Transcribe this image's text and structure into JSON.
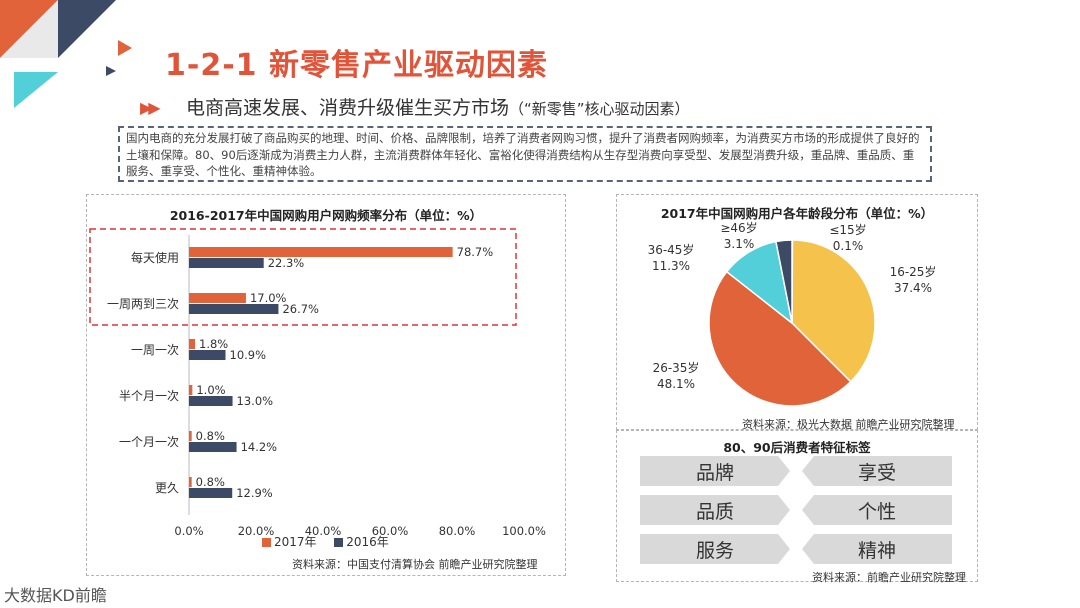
{
  "page": {
    "title": "1-2-1  新零售产业驱动因素",
    "subtitle_main": "电商高速发展、消费升级催生买方市场",
    "subtitle_note": "（“新零售”核心驱动因素）",
    "intro": "国内电商的充分发展打破了商品购买的地理、时间、价格、品牌限制，培养了消费者网购习惯，提升了消费者网购频率，为消费买方市场的形成提供了良好的土壤和保障。80、90后逐渐成为消费主力人群，主流消费群体年轻化、富裕化使得消费结构从生存型消费向享受型、发展型消费升级，重品牌、重品质、重服务、重享受、个性化、重精神体验。",
    "watermark": "大数据KD前瞻"
  },
  "colors": {
    "orange": "#e0633a",
    "navy": "#3d4a66",
    "yellow": "#f5c24c",
    "cyan": "#52cfd9",
    "dark": "#3d4a66"
  },
  "chart_data": [
    {
      "type": "bar",
      "orientation": "horizontal",
      "title": "2016-2017年中国网购用户网购频率分布（单位：%）",
      "categories": [
        "每天使用",
        "一周两到三次",
        "一周一次",
        "半个月一次",
        "一个月一次",
        "更久"
      ],
      "series": [
        {
          "name": "2017年",
          "values": [
            78.7,
            17.0,
            1.8,
            1.0,
            0.8,
            0.8
          ],
          "labels": [
            "78.7%",
            "17.0%",
            "1.8%",
            "1.0%",
            "0.8%",
            "0.8%"
          ]
        },
        {
          "name": "2016年",
          "values": [
            22.3,
            26.7,
            10.9,
            13.0,
            14.2,
            12.9
          ],
          "labels": [
            "22.3%",
            "26.7%",
            "10.9%",
            "13.0%",
            "14.2%",
            "12.9%"
          ]
        }
      ],
      "xlim": [
        0,
        100
      ],
      "xticks": [
        "0.0%",
        "20.0%",
        "40.0%",
        "60.0%",
        "80.0%",
        "100.0%"
      ],
      "legend": "bottom",
      "source": "资料来源：中国支付清算协会 前瞻产业研究院整理"
    },
    {
      "type": "pie",
      "title": "2017年中国网购用户各年龄段分布（单位：%）",
      "slices": [
        {
          "label": "≤15岁",
          "value": 0.1,
          "value_label": "0.1%"
        },
        {
          "label": "16-25岁",
          "value": 37.4,
          "value_label": "37.4%"
        },
        {
          "label": "26-35岁",
          "value": 48.1,
          "value_label": "48.1%"
        },
        {
          "label": "36-45岁",
          "value": 11.3,
          "value_label": "11.3%"
        },
        {
          "label": "≥46岁",
          "value": 3.1,
          "value_label": "3.1%"
        }
      ],
      "source": "资料来源：极光大数据 前瞻产业研究院整理"
    }
  ],
  "tags_panel": {
    "title": "80、90后消费者特征标签",
    "tags": [
      "品牌",
      "享受",
      "品质",
      "个性",
      "服务",
      "精神"
    ],
    "source": "资料来源：前瞻产业研究院整理"
  }
}
